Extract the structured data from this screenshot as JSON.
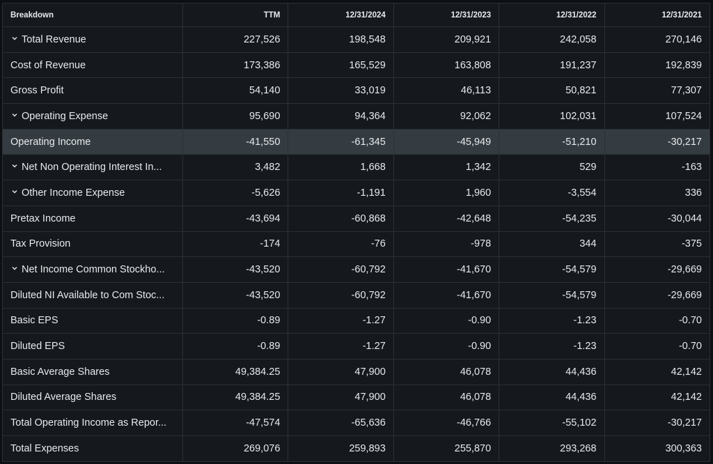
{
  "table": {
    "header": [
      "Breakdown",
      "TTM",
      "12/31/2024",
      "12/31/2023",
      "12/31/2022",
      "12/31/2021"
    ],
    "rows": [
      [
        "Total Revenue",
        "227,526",
        "198,548",
        "209,921",
        "242,058",
        "270,146"
      ],
      [
        "Cost of Revenue",
        "173,386",
        "165,529",
        "163,808",
        "191,237",
        "192,839"
      ],
      [
        "Gross Profit",
        "54,140",
        "33,019",
        "46,113",
        "50,821",
        "77,307"
      ],
      [
        "Operating Expense",
        "95,690",
        "94,364",
        "92,062",
        "102,031",
        "107,524"
      ],
      [
        "Operating Income",
        "-41,550",
        "-61,345",
        "-45,949",
        "-51,210",
        "-30,217"
      ],
      [
        "Net Non Operating Interest In...",
        "3,482",
        "1,668",
        "1,342",
        "529",
        "-163"
      ],
      [
        "Other Income Expense",
        "-5,626",
        "-1,191",
        "1,960",
        "-3,554",
        "336"
      ],
      [
        "Pretax Income",
        "-43,694",
        "-60,868",
        "-42,648",
        "-54,235",
        "-30,044"
      ],
      [
        "Tax Provision",
        "-174",
        "-76",
        "-978",
        "344",
        "-375"
      ],
      [
        "Net Income Common Stockho...",
        "-43,520",
        "-60,792",
        "-41,670",
        "-54,579",
        "-29,669"
      ],
      [
        "Diluted NI Available to Com Stoc...",
        "-43,520",
        "-60,792",
        "-41,670",
        "-54,579",
        "-29,669"
      ],
      [
        "Basic EPS",
        "-0.89",
        "-1.27",
        "-0.90",
        "-1.23",
        "-0.70"
      ],
      [
        "Diluted EPS",
        "-0.89",
        "-1.27",
        "-0.90",
        "-1.23",
        "-0.70"
      ],
      [
        "Basic Average Shares",
        "49,384.25",
        "47,900",
        "46,078",
        "44,436",
        "42,142"
      ],
      [
        "Diluted Average Shares",
        "49,384.25",
        "47,900",
        "46,078",
        "44,436",
        "42,142"
      ],
      [
        "Total Operating Income as Repor...",
        "-47,574",
        "-65,636",
        "-46,766",
        "-55,102",
        "-30,217"
      ],
      [
        "Total Expenses",
        "269,076",
        "259,893",
        "255,870",
        "293,268",
        "300,363"
      ]
    ]
  }
}
